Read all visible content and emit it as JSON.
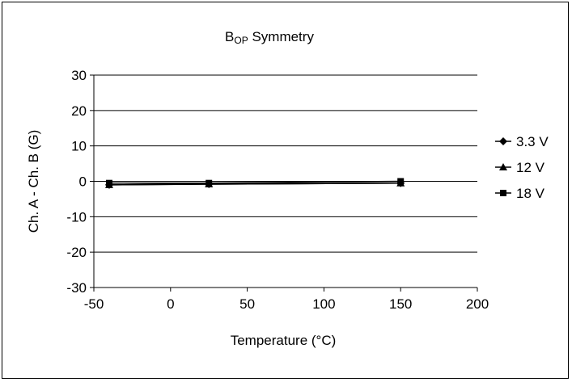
{
  "chart_data": {
    "type": "line",
    "title": {
      "main": "B",
      "sub": "OP",
      "rest": " Symmetry"
    },
    "xlabel": "Temperature (°C)",
    "ylabel": "Ch. A - Ch. B (G)",
    "xlim": [
      -50,
      200
    ],
    "ylim": [
      -30,
      30
    ],
    "xticks": [
      -50,
      0,
      50,
      100,
      150,
      200
    ],
    "yticks": [
      -30,
      -20,
      -10,
      0,
      10,
      20,
      30
    ],
    "grid": "horizontal",
    "legend_position": "right",
    "series": [
      {
        "name": "3.3 V",
        "marker": "diamond",
        "x": [
          -40,
          25,
          150
        ],
        "y": [
          -1,
          -0.8,
          -0.5
        ]
      },
      {
        "name": "12 V",
        "marker": "triangle",
        "x": [
          -40,
          25,
          150
        ],
        "y": [
          -1,
          -0.8,
          -0.5
        ]
      },
      {
        "name": "18 V",
        "marker": "square",
        "x": [
          -40,
          25,
          150
        ],
        "y": [
          -0.5,
          -0.5,
          0
        ]
      }
    ]
  }
}
